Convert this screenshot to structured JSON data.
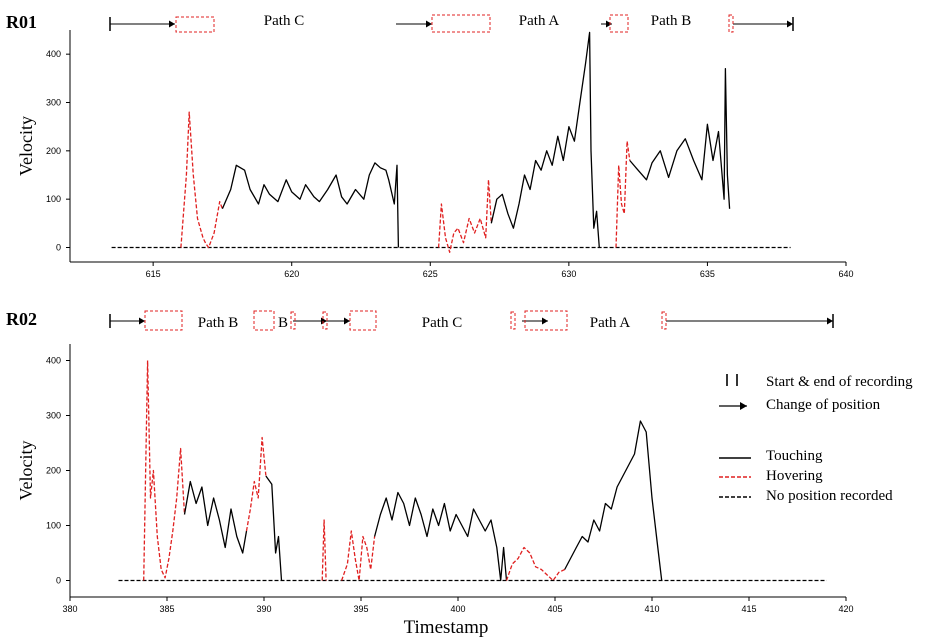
{
  "colors": {
    "touching": "#000000",
    "hovering": "#e02020",
    "axis": "#000000",
    "box": "#e02020"
  },
  "shared": {
    "x_axis_title": "Timestamp",
    "y_axis_title": "Velocity"
  },
  "legend": {
    "start_end": "Start & end of recording",
    "change": "Change of position",
    "touching": "Touching",
    "hovering": "Hovering",
    "no_position": "No position recorded"
  },
  "chart_data": [
    {
      "type": "line",
      "title": "R01",
      "xlabel": "",
      "ylabel": "Velocity",
      "xlim": [
        612,
        640
      ],
      "ylim": [
        -30,
        450
      ],
      "xticks": [
        615,
        620,
        625,
        630,
        635,
        640
      ],
      "yticks": [
        0,
        100,
        200,
        300,
        400
      ],
      "path_labels": [
        "Path C",
        "Path A",
        "Path B"
      ],
      "series": [
        {
          "name": "No position recorded",
          "style": "black-dashed",
          "points": [
            [
              613.5,
              0
            ],
            [
              616.0,
              0
            ],
            [
              623.8,
              0
            ],
            [
              625.3,
              0
            ],
            [
              631.1,
              0
            ],
            [
              631.7,
              0
            ],
            [
              635.8,
              0
            ],
            [
              638.0,
              0
            ]
          ]
        },
        {
          "name": "Hovering",
          "style": "red-dashed",
          "points": [
            [
              616.0,
              0
            ],
            [
              616.2,
              150
            ],
            [
              616.3,
              280
            ],
            [
              616.45,
              150
            ],
            [
              616.6,
              60
            ],
            [
              616.8,
              20
            ],
            [
              616.9,
              8
            ],
            [
              617.0,
              0
            ],
            [
              617.2,
              30
            ],
            [
              617.4,
              95
            ],
            [
              617.5,
              80
            ]
          ]
        },
        {
          "name": "Touching",
          "style": "black-solid",
          "points": [
            [
              617.5,
              80
            ],
            [
              617.8,
              120
            ],
            [
              618.0,
              170
            ],
            [
              618.3,
              160
            ],
            [
              618.5,
              120
            ],
            [
              618.8,
              90
            ],
            [
              619.0,
              130
            ],
            [
              619.2,
              110
            ],
            [
              619.5,
              95
            ],
            [
              619.8,
              140
            ],
            [
              620.0,
              115
            ],
            [
              620.3,
              100
            ],
            [
              620.5,
              130
            ],
            [
              620.8,
              105
            ],
            [
              621.0,
              95
            ],
            [
              621.3,
              120
            ],
            [
              621.6,
              150
            ],
            [
              621.8,
              105
            ],
            [
              622.0,
              90
            ],
            [
              622.3,
              120
            ],
            [
              622.6,
              100
            ],
            [
              622.8,
              150
            ],
            [
              623.0,
              175
            ],
            [
              623.2,
              165
            ],
            [
              623.4,
              160
            ],
            [
              623.5,
              140
            ],
            [
              623.7,
              90
            ],
            [
              623.8,
              170
            ],
            [
              623.85,
              0
            ]
          ]
        },
        {
          "name": "Hovering",
          "style": "red-dashed",
          "points": [
            [
              625.3,
              0
            ],
            [
              625.4,
              90
            ],
            [
              625.55,
              20
            ],
            [
              625.7,
              -10
            ],
            [
              625.85,
              30
            ],
            [
              626.0,
              40
            ],
            [
              626.2,
              10
            ],
            [
              626.4,
              60
            ],
            [
              626.6,
              30
            ],
            [
              626.8,
              60
            ],
            [
              627.0,
              20
            ],
            [
              627.1,
              140
            ],
            [
              627.2,
              50
            ]
          ]
        },
        {
          "name": "Touching",
          "style": "black-solid",
          "points": [
            [
              627.2,
              50
            ],
            [
              627.4,
              100
            ],
            [
              627.6,
              110
            ],
            [
              627.8,
              70
            ],
            [
              628.0,
              40
            ],
            [
              628.2,
              90
            ],
            [
              628.4,
              150
            ],
            [
              628.6,
              120
            ],
            [
              628.8,
              180
            ],
            [
              629.0,
              160
            ],
            [
              629.2,
              200
            ],
            [
              629.4,
              170
            ],
            [
              629.6,
              230
            ],
            [
              629.8,
              180
            ],
            [
              630.0,
              250
            ],
            [
              630.2,
              220
            ],
            [
              630.4,
              300
            ],
            [
              630.6,
              380
            ],
            [
              630.75,
              445
            ],
            [
              630.8,
              200
            ],
            [
              630.9,
              40
            ],
            [
              631.0,
              75
            ],
            [
              631.1,
              0
            ]
          ]
        },
        {
          "name": "Hovering",
          "style": "red-dashed",
          "points": [
            [
              631.7,
              0
            ],
            [
              631.8,
              170
            ],
            [
              631.9,
              90
            ],
            [
              632.0,
              70
            ],
            [
              632.1,
              220
            ],
            [
              632.2,
              180
            ]
          ]
        },
        {
          "name": "Touching",
          "style": "black-solid",
          "points": [
            [
              632.2,
              180
            ],
            [
              632.5,
              160
            ],
            [
              632.8,
              140
            ],
            [
              633.0,
              175
            ],
            [
              633.3,
              200
            ],
            [
              633.6,
              145
            ],
            [
              633.9,
              200
            ],
            [
              634.2,
              225
            ],
            [
              634.5,
              180
            ],
            [
              634.8,
              140
            ],
            [
              635.0,
              255
            ],
            [
              635.2,
              180
            ],
            [
              635.4,
              240
            ],
            [
              635.6,
              100
            ],
            [
              635.65,
              370
            ],
            [
              635.72,
              150
            ],
            [
              635.8,
              80
            ]
          ]
        }
      ]
    },
    {
      "type": "line",
      "title": "R02",
      "xlabel": "Timestamp",
      "ylabel": "Velocity",
      "xlim": [
        380,
        420
      ],
      "ylim": [
        -30,
        430
      ],
      "xticks": [
        380,
        385,
        390,
        395,
        400,
        405,
        410,
        415,
        420
      ],
      "yticks": [
        0,
        100,
        200,
        300,
        400
      ],
      "path_labels": [
        "Path B",
        "B",
        "Path C",
        "Path A"
      ],
      "series": [
        {
          "name": "No position recorded",
          "style": "black-dashed",
          "points": [
            [
              382.5,
              0
            ],
            [
              383.8,
              0
            ],
            [
              390.9,
              0
            ],
            [
              391.6,
              0
            ],
            [
              393.0,
              0
            ],
            [
              394.0,
              0
            ],
            [
              410.5,
              0
            ],
            [
              419.0,
              0
            ]
          ]
        },
        {
          "name": "Hovering",
          "style": "red-dashed",
          "points": [
            [
              383.8,
              0
            ],
            [
              384.0,
              400
            ],
            [
              384.15,
              150
            ],
            [
              384.3,
              200
            ],
            [
              384.5,
              80
            ],
            [
              384.7,
              20
            ],
            [
              384.9,
              5
            ],
            [
              385.1,
              40
            ],
            [
              385.3,
              90
            ],
            [
              385.5,
              150
            ],
            [
              385.7,
              240
            ],
            [
              385.9,
              120
            ]
          ]
        },
        {
          "name": "Touching",
          "style": "black-solid",
          "points": [
            [
              385.9,
              120
            ],
            [
              386.2,
              180
            ],
            [
              386.5,
              140
            ],
            [
              386.8,
              170
            ],
            [
              387.1,
              100
            ],
            [
              387.4,
              150
            ],
            [
              387.7,
              110
            ],
            [
              388.0,
              60
            ],
            [
              388.3,
              130
            ],
            [
              388.6,
              80
            ],
            [
              388.9,
              50
            ],
            [
              389.1,
              90
            ]
          ]
        },
        {
          "name": "Hovering",
          "style": "red-dashed",
          "points": [
            [
              389.1,
              90
            ],
            [
              389.3,
              130
            ],
            [
              389.5,
              180
            ],
            [
              389.7,
              150
            ],
            [
              389.9,
              260
            ],
            [
              390.1,
              190
            ]
          ]
        },
        {
          "name": "Touching",
          "style": "black-solid",
          "points": [
            [
              390.1,
              190
            ],
            [
              390.4,
              175
            ],
            [
              390.6,
              50
            ],
            [
              390.75,
              80
            ],
            [
              390.9,
              0
            ]
          ]
        },
        {
          "name": "Hovering",
          "style": "red-dashed",
          "points": [
            [
              393.0,
              0
            ],
            [
              393.1,
              110
            ],
            [
              393.2,
              0
            ]
          ]
        },
        {
          "name": "Hovering",
          "style": "red-dashed",
          "points": [
            [
              394.0,
              0
            ],
            [
              394.3,
              30
            ],
            [
              394.5,
              90
            ],
            [
              394.7,
              40
            ],
            [
              394.9,
              0
            ],
            [
              395.1,
              80
            ],
            [
              395.3,
              60
            ],
            [
              395.5,
              20
            ],
            [
              395.7,
              80
            ]
          ]
        },
        {
          "name": "Touching",
          "style": "black-solid",
          "points": [
            [
              395.7,
              80
            ],
            [
              396.0,
              120
            ],
            [
              396.3,
              150
            ],
            [
              396.6,
              110
            ],
            [
              396.9,
              160
            ],
            [
              397.2,
              140
            ],
            [
              397.5,
              100
            ],
            [
              397.8,
              150
            ],
            [
              398.1,
              120
            ],
            [
              398.4,
              80
            ],
            [
              398.7,
              130
            ],
            [
              399.0,
              100
            ],
            [
              399.3,
              140
            ],
            [
              399.6,
              90
            ],
            [
              399.9,
              120
            ],
            [
              400.2,
              100
            ],
            [
              400.5,
              80
            ],
            [
              400.8,
              130
            ],
            [
              401.1,
              110
            ],
            [
              401.4,
              90
            ],
            [
              401.7,
              110
            ],
            [
              402.0,
              60
            ],
            [
              402.2,
              0
            ],
            [
              402.35,
              60
            ],
            [
              402.5,
              0
            ]
          ]
        },
        {
          "name": "Hovering",
          "style": "red-dashed",
          "points": [
            [
              402.5,
              0
            ],
            [
              402.8,
              30
            ],
            [
              403.1,
              40
            ],
            [
              403.4,
              60
            ],
            [
              403.7,
              50
            ],
            [
              404.0,
              25
            ],
            [
              404.3,
              20
            ],
            [
              404.6,
              10
            ],
            [
              404.9,
              0
            ],
            [
              405.2,
              15
            ],
            [
              405.5,
              20
            ]
          ]
        },
        {
          "name": "Touching",
          "style": "black-solid",
          "points": [
            [
              405.5,
              20
            ],
            [
              405.8,
              40
            ],
            [
              406.1,
              60
            ],
            [
              406.4,
              80
            ],
            [
              406.7,
              70
            ],
            [
              407.0,
              110
            ],
            [
              407.3,
              90
            ],
            [
              407.6,
              140
            ],
            [
              407.9,
              130
            ],
            [
              408.2,
              170
            ],
            [
              408.5,
              190
            ],
            [
              408.8,
              210
            ],
            [
              409.1,
              230
            ],
            [
              409.4,
              290
            ],
            [
              409.7,
              270
            ],
            [
              410.0,
              150
            ],
            [
              410.3,
              60
            ],
            [
              410.5,
              0
            ]
          ]
        }
      ]
    }
  ]
}
